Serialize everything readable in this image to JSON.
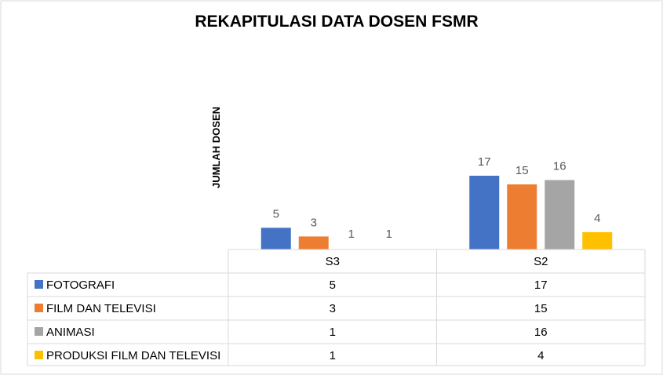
{
  "chart_data": {
    "type": "bar",
    "title": "REKAPITULASI DATA DOSEN FSMR",
    "xlabel": "",
    "ylabel": "JUMLAH DOSEN",
    "categories": [
      "S3",
      "S2"
    ],
    "ylim": [
      0,
      17
    ],
    "grid": false,
    "legend": "data-table",
    "series": [
      {
        "name": "FOTOGRAFI",
        "color": "#4472C4",
        "values": [
          5,
          17
        ]
      },
      {
        "name": "FILM DAN TELEVISI",
        "color": "#ED7D31",
        "values": [
          3,
          15
        ]
      },
      {
        "name": "ANIMASI",
        "color": "#A5A5A5",
        "values": [
          1,
          16
        ]
      },
      {
        "name": "PRODUKSI FILM DAN TELEVISI",
        "color": "#FFC000",
        "values": [
          1,
          4
        ]
      }
    ]
  }
}
